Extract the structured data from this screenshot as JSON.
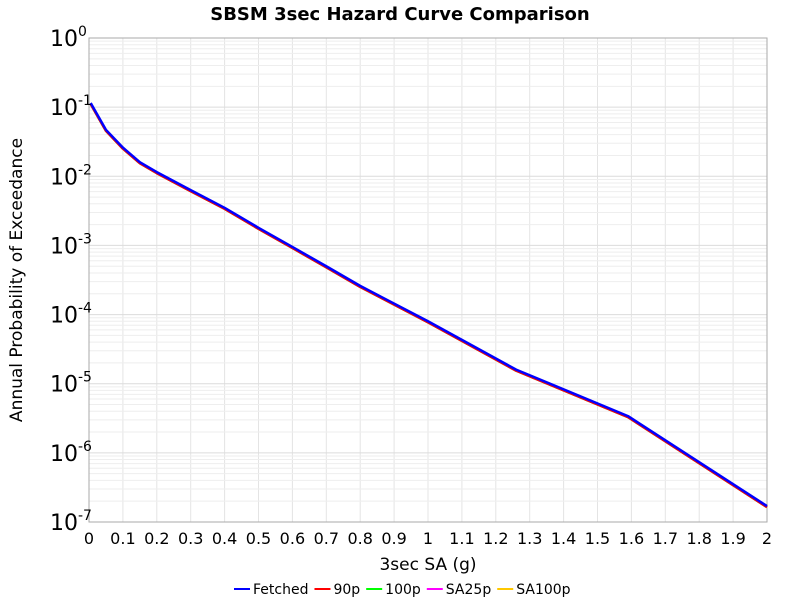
{
  "chart_data": {
    "type": "line",
    "title": "SBSM 3sec Hazard Curve Comparison",
    "xlabel": "3sec SA (g)",
    "ylabel": "Annual Probability of Exceedance",
    "xlim": [
      0,
      2
    ],
    "ylim": [
      1e-07,
      1
    ],
    "yscale": "log",
    "grid": true,
    "legend_position": "bottom",
    "x_ticks": [
      "0",
      "0.1",
      "0.2",
      "0.3",
      "0.4",
      "0.5",
      "0.6",
      "0.7",
      "0.8",
      "0.9",
      "1",
      "1.1",
      "1.2",
      "1.3",
      "1.4",
      "1.5",
      "1.6",
      "1.7",
      "1.8",
      "1.9",
      "2"
    ],
    "y_ticks": [
      {
        "base": "10",
        "exp": "0"
      },
      {
        "base": "10",
        "exp": "-1"
      },
      {
        "base": "10",
        "exp": "-2"
      },
      {
        "base": "10",
        "exp": "-3"
      },
      {
        "base": "10",
        "exp": "-4"
      },
      {
        "base": "10",
        "exp": "-5"
      },
      {
        "base": "10",
        "exp": "-6"
      },
      {
        "base": "10",
        "exp": "-7"
      }
    ],
    "x": [
      0.005,
      0.05,
      0.1,
      0.15,
      0.2,
      0.3,
      0.4,
      0.5,
      0.6,
      0.7,
      0.8,
      1.0,
      1.26,
      1.59,
      2.0
    ],
    "series": [
      {
        "name": "Fetched",
        "color": "#0000ff",
        "values": [
          0.115,
          0.047,
          0.026,
          0.016,
          0.0115,
          0.0063,
          0.0035,
          0.0018,
          0.00095,
          0.0005,
          0.00026,
          8e-05,
          1.6e-05,
          3.4e-06,
          1.7e-07
        ]
      },
      {
        "name": "90p",
        "color": "#ff0000",
        "values": [
          0.115,
          0.047,
          0.026,
          0.016,
          0.0115,
          0.0063,
          0.0035,
          0.0018,
          0.00095,
          0.0005,
          0.00026,
          8e-05,
          1.6e-05,
          3.4e-06,
          1.7e-07
        ]
      },
      {
        "name": "100p",
        "color": "#00ff00",
        "values": [
          0.115,
          0.047,
          0.026,
          0.016,
          0.0115,
          0.0063,
          0.0035,
          0.0018,
          0.00095,
          0.0005,
          0.00026,
          8e-05,
          1.6e-05,
          3.4e-06,
          1.7e-07
        ]
      },
      {
        "name": "SA25p",
        "color": "#ff00ff",
        "values": [
          0.115,
          0.047,
          0.026,
          0.016,
          0.0115,
          0.0063,
          0.0035,
          0.0018,
          0.00095,
          0.0005,
          0.00026,
          8e-05,
          1.6e-05,
          3.4e-06,
          1.7e-07
        ]
      },
      {
        "name": "SA100p",
        "color": "#ffc800",
        "values": [
          0.115,
          0.047,
          0.026,
          0.016,
          0.0115,
          0.0063,
          0.0035,
          0.0018,
          0.00095,
          0.0005,
          0.00026,
          8e-05,
          1.6e-05,
          3.4e-06,
          1.7e-07
        ]
      }
    ]
  }
}
